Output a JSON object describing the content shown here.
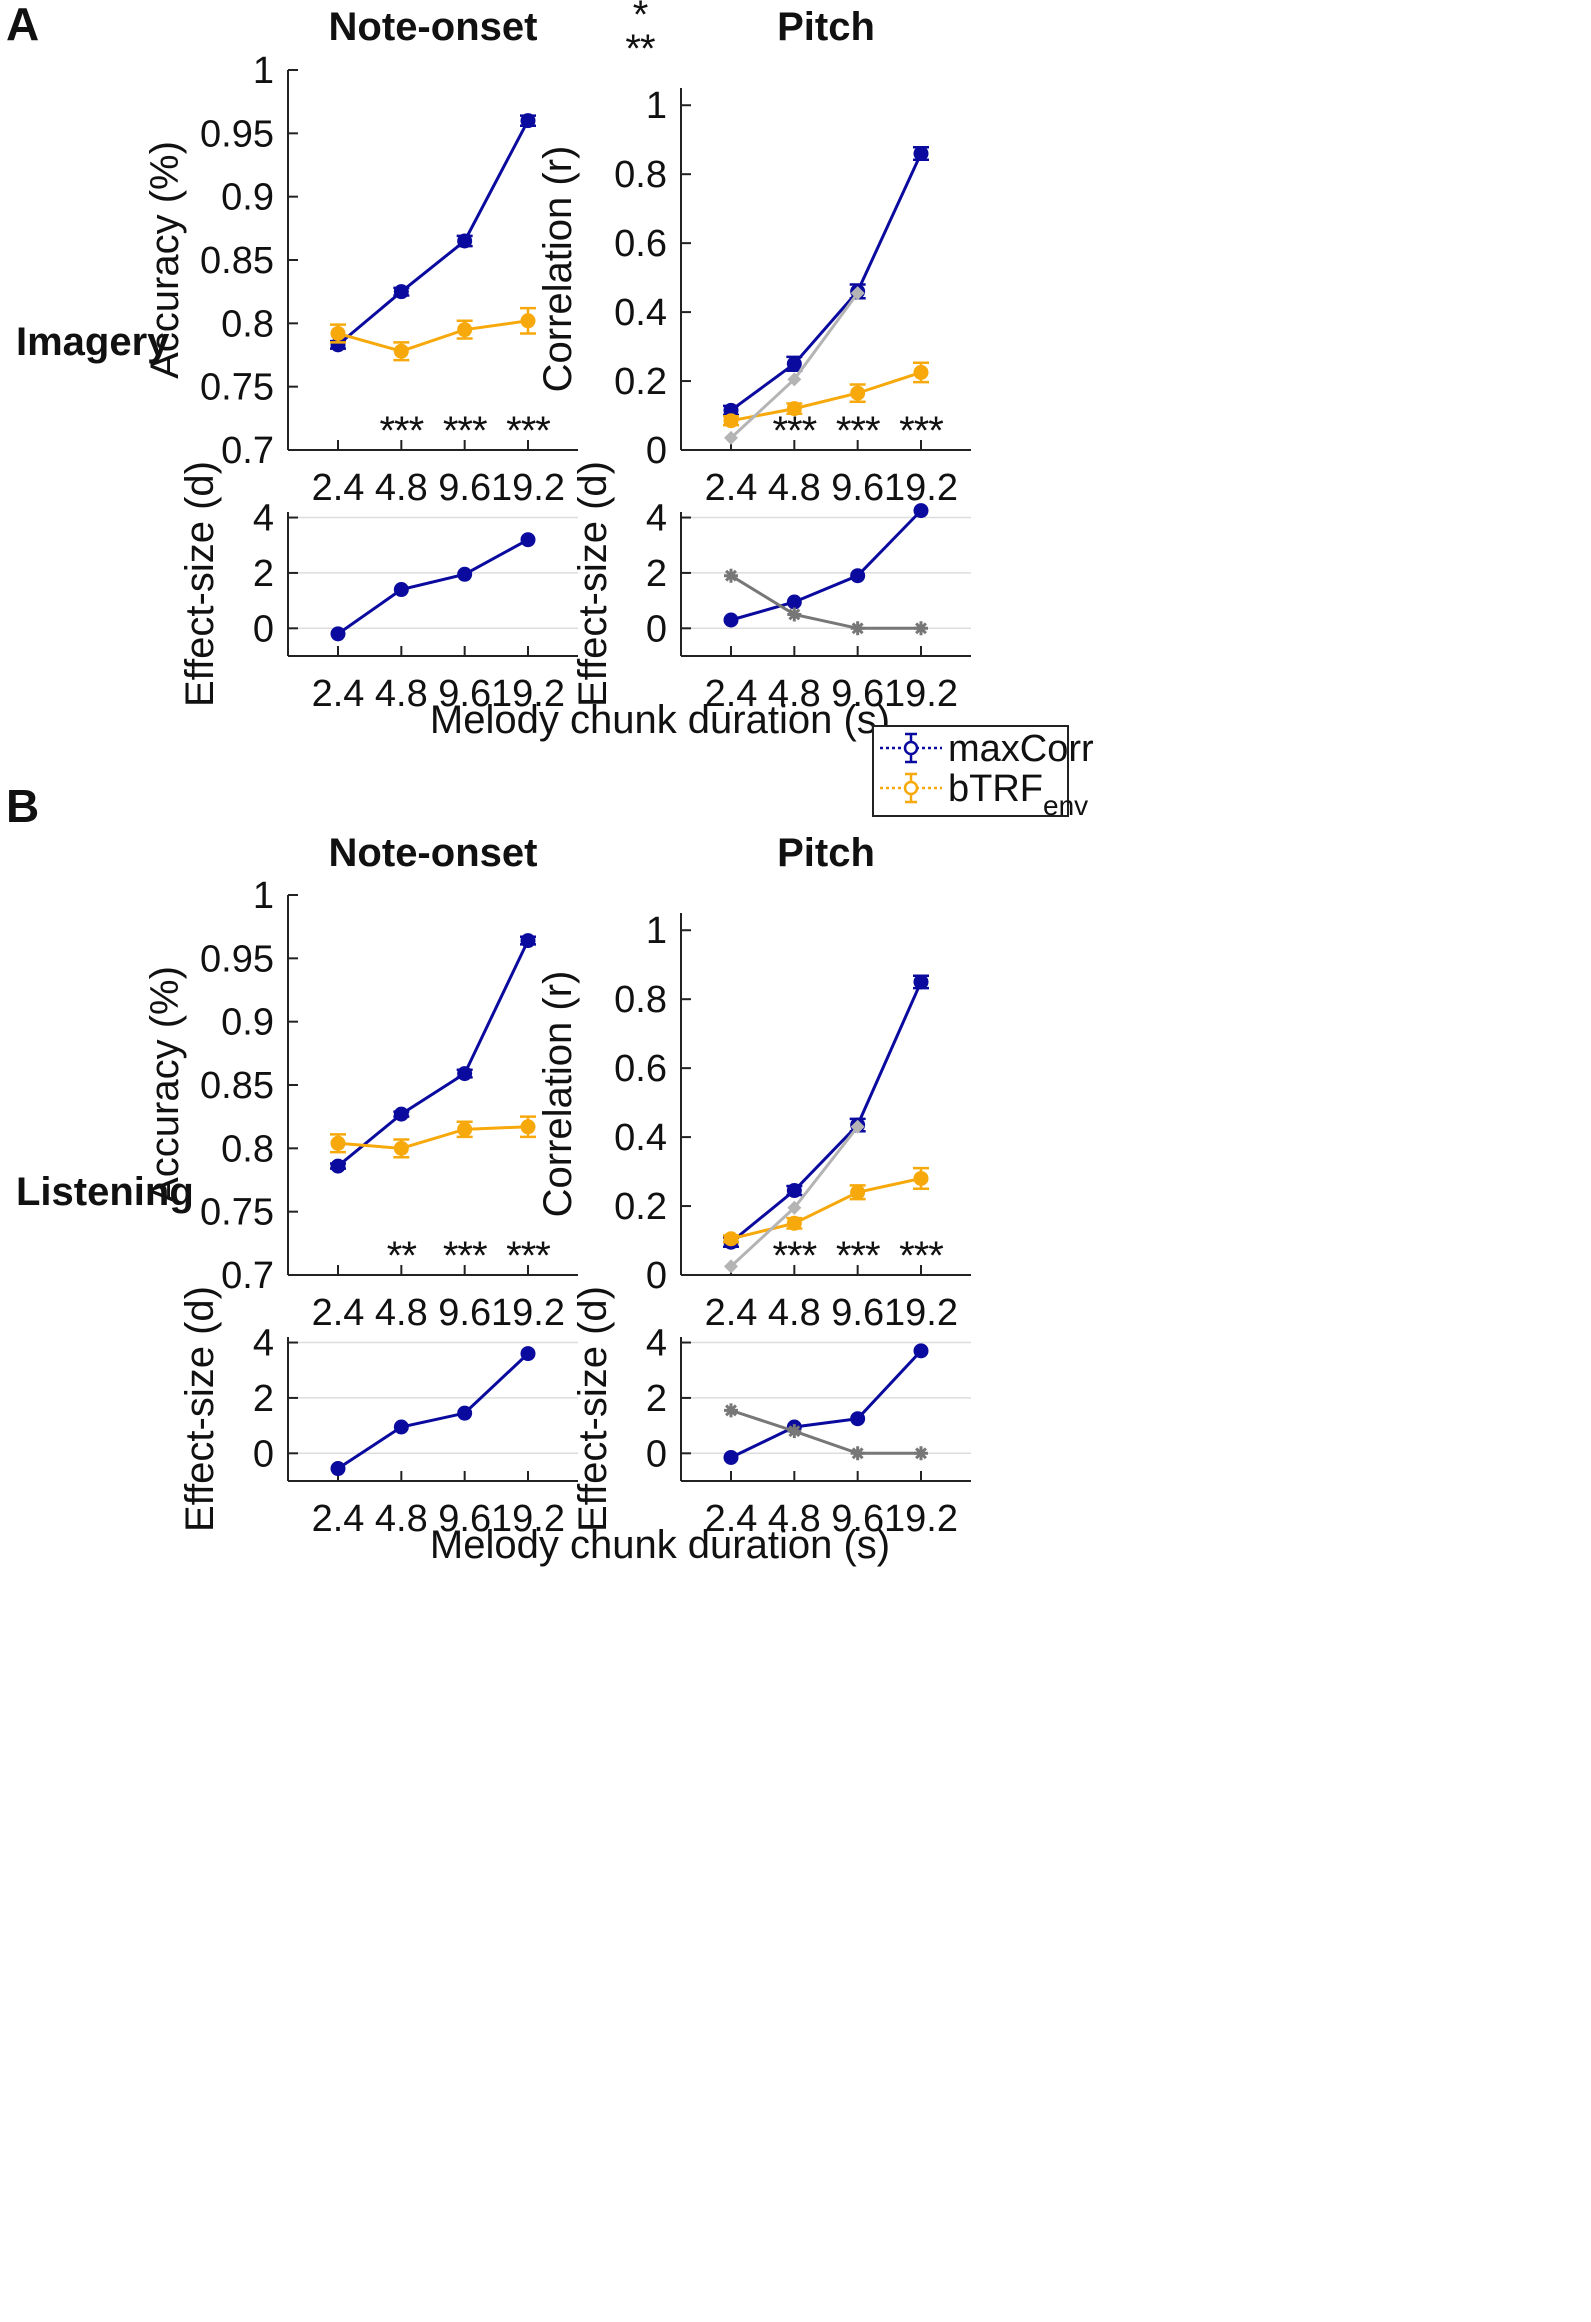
{
  "figure": {
    "legend": {
      "entries": [
        {
          "name": "maxCorr",
          "label": "maxCorr",
          "color": "#0a0a9e"
        },
        {
          "name": "bTRF",
          "label_main": "bTRF",
          "label_sub": "env",
          "color": "#f7a90c"
        }
      ]
    },
    "colors": {
      "maxCorr": "#0a0a9e",
      "bTRF": "#f7a90c",
      "grey_light": "#b4b4b4",
      "grey_dark": "#777777"
    },
    "extra_stars": [
      "*",
      "**"
    ]
  },
  "chart_data": [
    {
      "id": "A",
      "panel_letter": "A",
      "row_label": "Imagery",
      "xlabel": "Melody chunk duration (s)",
      "categories": [
        "2.4",
        "4.8",
        "9.6",
        "19.2"
      ],
      "onset": {
        "type": "line",
        "title": "Note-onset",
        "ylabel": "Accuracy (%)",
        "ylim": [
          0.7,
          1.0
        ],
        "yticks": [
          "0.7",
          "0.75",
          "0.8",
          "0.85",
          "0.9",
          "0.95",
          "1"
        ],
        "series": [
          {
            "name": "maxCorr",
            "values": [
              0.783,
              0.825,
              0.865,
              0.96
            ],
            "err": [
              0.003,
              0.003,
              0.004,
              0.004
            ]
          },
          {
            "name": "bTRF",
            "values": [
              0.792,
              0.778,
              0.795,
              0.802
            ],
            "err": [
              0.007,
              0.007,
              0.007,
              0.01
            ]
          }
        ],
        "significance": [
          "",
          "***",
          "***",
          "***"
        ]
      },
      "onset_effect": {
        "type": "line",
        "ylabel": "Effect-size (d)",
        "ylim": [
          -1,
          4.2
        ],
        "yticks": [
          "0",
          "2",
          "4"
        ],
        "series": [
          {
            "name": "maxCorr",
            "values": [
              -0.2,
              1.4,
              1.95,
              3.2
            ]
          }
        ]
      },
      "pitch": {
        "type": "line",
        "title": "Pitch",
        "ylabel": "Correlation (r)",
        "ylim": [
          0,
          1.05
        ],
        "yticks": [
          "0",
          "0.2",
          "0.4",
          "0.6",
          "0.8",
          "1"
        ],
        "series": [
          {
            "name": "maxCorr",
            "values": [
              0.115,
              0.25,
              0.46,
              0.86
            ],
            "err": [
              0.013,
              0.02,
              0.02,
              0.018
            ]
          },
          {
            "name": "bTRF",
            "values": [
              0.085,
              0.12,
              0.165,
              0.225
            ],
            "err": [
              0.013,
              0.015,
              0.025,
              0.028
            ]
          },
          {
            "name": "grey",
            "values": [
              0.035,
              0.205,
              0.455,
              null
            ],
            "err": null
          }
        ],
        "significance": [
          "",
          "***",
          "***",
          "***"
        ]
      },
      "pitch_effect": {
        "type": "line",
        "ylabel": "Effect-size (d)",
        "ylim": [
          -1,
          4.2
        ],
        "yticks": [
          "0",
          "2",
          "4"
        ],
        "series": [
          {
            "name": "maxCorr",
            "values": [
              0.3,
              0.95,
              1.9,
              4.25
            ]
          },
          {
            "name": "grey",
            "values": [
              1.9,
              0.5,
              0.0,
              0.0
            ]
          }
        ]
      }
    },
    {
      "id": "B",
      "panel_letter": "B",
      "row_label": "Listening",
      "xlabel": "Melody chunk duration (s)",
      "categories": [
        "2.4",
        "4.8",
        "9.6",
        "19.2"
      ],
      "onset": {
        "type": "line",
        "title": "Note-onset",
        "ylabel": "Accuracy (%)",
        "ylim": [
          0.7,
          1.0
        ],
        "yticks": [
          "0.7",
          "0.75",
          "0.8",
          "0.85",
          "0.9",
          "0.95",
          "1"
        ],
        "series": [
          {
            "name": "maxCorr",
            "values": [
              0.786,
              0.827,
              0.859,
              0.964
            ],
            "err": [
              0.002,
              0.002,
              0.003,
              0.003
            ]
          },
          {
            "name": "bTRF",
            "values": [
              0.804,
              0.8,
              0.815,
              0.817
            ],
            "err": [
              0.007,
              0.007,
              0.006,
              0.008
            ]
          }
        ],
        "significance": [
          "",
          "**",
          "***",
          "***"
        ]
      },
      "onset_effect": {
        "type": "line",
        "ylabel": "Effect-size (d)",
        "ylim": [
          -1,
          4.2
        ],
        "yticks": [
          "0",
          "2",
          "4"
        ],
        "series": [
          {
            "name": "maxCorr",
            "values": [
              -0.55,
              0.95,
              1.45,
              3.6
            ]
          }
        ]
      },
      "pitch": {
        "type": "line",
        "title": "Pitch",
        "ylabel": "Correlation (r)",
        "ylim": [
          0,
          1.05
        ],
        "yticks": [
          "0",
          "0.2",
          "0.4",
          "0.6",
          "0.8",
          "1"
        ],
        "series": [
          {
            "name": "maxCorr",
            "values": [
              0.095,
              0.245,
              0.435,
              0.85
            ],
            "err": [
              0.013,
              0.013,
              0.018,
              0.018
            ]
          },
          {
            "name": "bTRF",
            "values": [
              0.105,
              0.15,
              0.24,
              0.28
            ],
            "err": [
              0.01,
              0.015,
              0.02,
              0.03
            ]
          },
          {
            "name": "grey",
            "values": [
              0.025,
              0.195,
              0.43,
              null
            ],
            "err": null
          }
        ],
        "significance": [
          "",
          "***",
          "***",
          "***"
        ]
      },
      "pitch_effect": {
        "type": "line",
        "ylabel": "Effect-size (d)",
        "ylim": [
          -1,
          4.2
        ],
        "yticks": [
          "0",
          "2",
          "4"
        ],
        "series": [
          {
            "name": "maxCorr",
            "values": [
              -0.15,
              0.95,
              1.25,
              3.7
            ]
          },
          {
            "name": "grey",
            "values": [
              1.55,
              0.8,
              0.0,
              0.0
            ]
          }
        ]
      }
    }
  ]
}
